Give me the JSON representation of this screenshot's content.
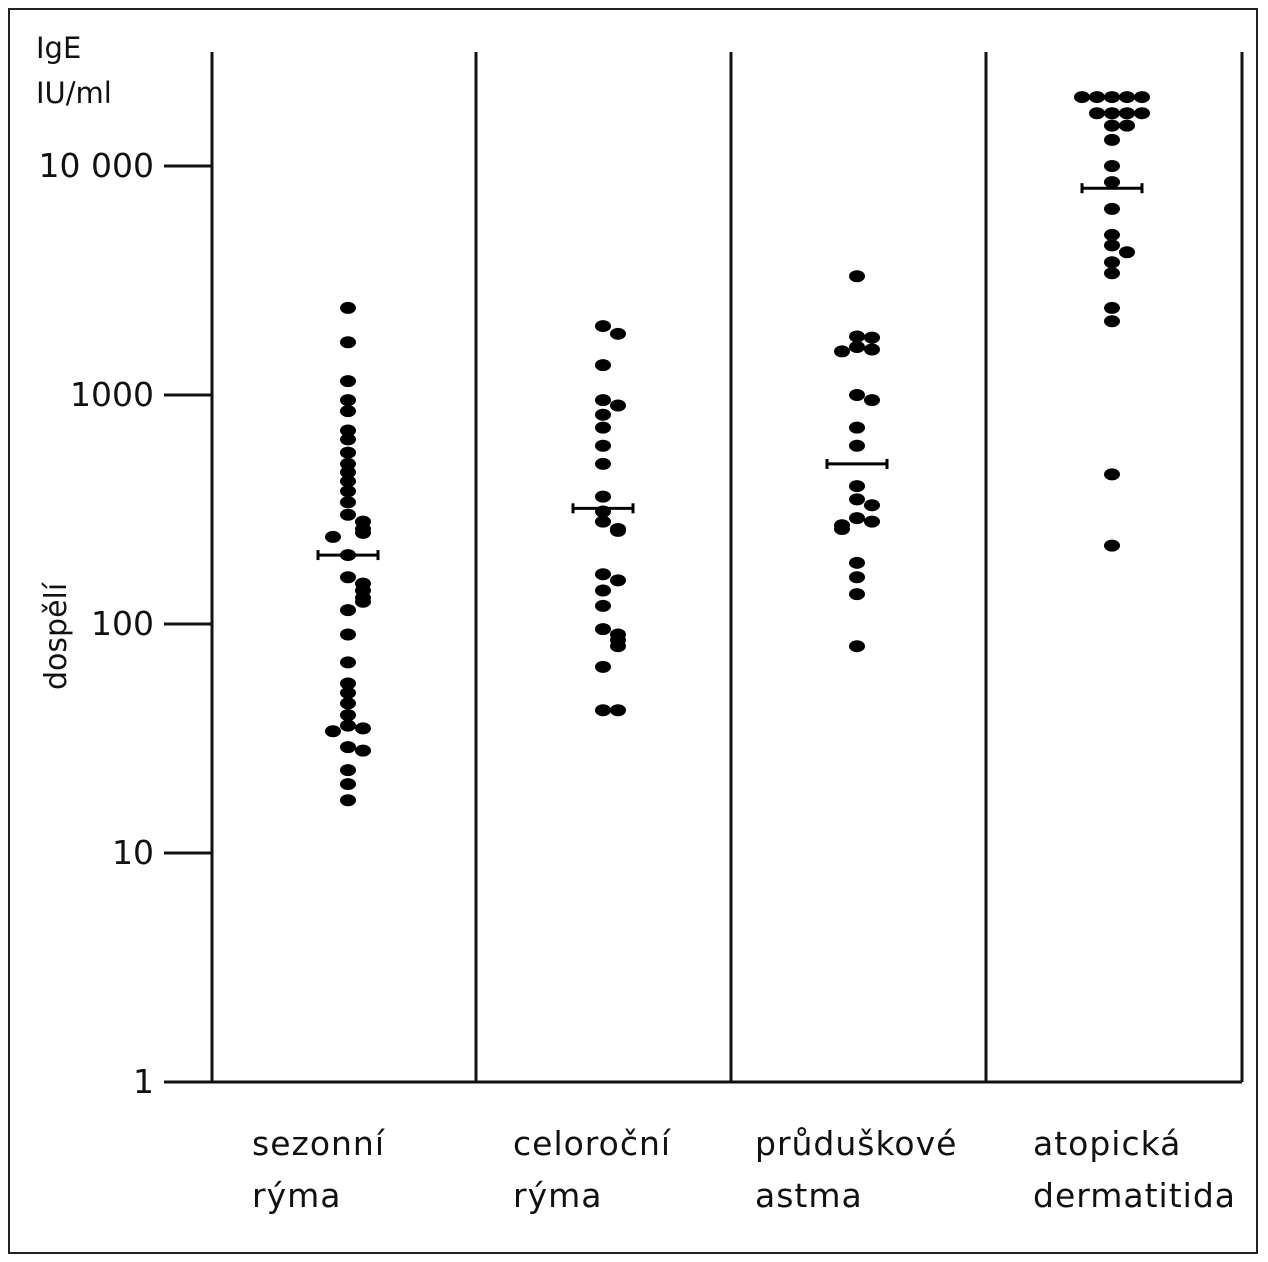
{
  "chart_data": {
    "type": "scatter",
    "yscale": "log",
    "ylim": [
      1,
      25000
    ],
    "y_unit_lines": [
      "IgE",
      "IU/ml"
    ],
    "side_label": "dospělí",
    "y_ticks": [
      {
        "value": 10000,
        "label": "10 000"
      },
      {
        "value": 1000,
        "label": "1000"
      },
      {
        "value": 100,
        "label": "100"
      },
      {
        "value": 10,
        "label": "10"
      },
      {
        "value": 1,
        "label": "1"
      }
    ],
    "colors": {
      "points": "#000000",
      "axes": "#111111",
      "frame": "#222222"
    },
    "groups": [
      {
        "label_lines": [
          "sezonní",
          "rýma"
        ],
        "mean": 200,
        "values": [
          2400,
          1700,
          1150,
          950,
          850,
          700,
          640,
          560,
          500,
          460,
          420,
          380,
          340,
          300,
          280,
          260,
          250,
          240,
          200,
          160,
          150,
          140,
          130,
          125,
          115,
          90,
          68,
          55,
          50,
          45,
          40,
          36,
          35,
          34,
          29,
          28,
          23,
          20,
          17
        ]
      },
      {
        "label_lines": [
          "celoroční",
          "rýma"
        ],
        "mean": 320,
        "values": [
          2000,
          1850,
          1350,
          950,
          900,
          820,
          720,
          600,
          500,
          360,
          310,
          280,
          260,
          255,
          165,
          155,
          140,
          120,
          95,
          90,
          85,
          80,
          65,
          42,
          42
        ]
      },
      {
        "label_lines": [
          "průduškové",
          "astma"
        ],
        "mean": 500,
        "values": [
          3300,
          1800,
          1780,
          1620,
          1580,
          1550,
          1000,
          950,
          720,
          600,
          400,
          350,
          330,
          290,
          280,
          270,
          260,
          185,
          160,
          135,
          80
        ]
      },
      {
        "label_lines": [
          "atopická",
          "dermatitida"
        ],
        "mean": 8000,
        "values": [
          20000,
          20000,
          20000,
          20000,
          20000,
          17000,
          17000,
          17000,
          17000,
          15000,
          15000,
          13000,
          10000,
          8500,
          6500,
          5000,
          4500,
          4200,
          3800,
          3400,
          2400,
          2100,
          450,
          220
        ]
      }
    ]
  }
}
